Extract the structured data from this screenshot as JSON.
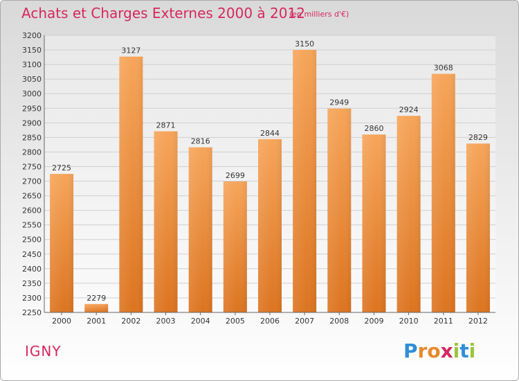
{
  "title": "Achats et Charges Externes 2000 à 2012",
  "subtitle": "(en milliers d'€)",
  "commune": "IGNY",
  "brand": {
    "letters": [
      "P",
      "r",
      "o",
      "x",
      "i",
      "t",
      "i"
    ],
    "colors": [
      "#2f8fd8",
      "#e8892b",
      "#e8892b",
      "#d6275e",
      "#9ac43c",
      "#2f8fd8",
      "#9ac43c"
    ]
  },
  "colors": {
    "accent": "#d6275e",
    "bar_top": "#f6a55a",
    "bar_bottom": "#dc7420",
    "grid": "#cfcfcf"
  },
  "chart_data": {
    "type": "bar",
    "title": "Achats et Charges Externes 2000 à 2012",
    "subtitle": "(en milliers d'€)",
    "categories": [
      "2000",
      "2001",
      "2002",
      "2003",
      "2004",
      "2005",
      "2006",
      "2007",
      "2008",
      "2009",
      "2010",
      "2011",
      "2012"
    ],
    "values": [
      2725,
      2279,
      3127,
      2871,
      2816,
      2699,
      2844,
      3150,
      2949,
      2860,
      2924,
      3068,
      2829
    ],
    "ylim": [
      2250,
      3200
    ],
    "ytick_step": 50,
    "yticks": [
      2250,
      2300,
      2350,
      2400,
      2450,
      2500,
      2550,
      2600,
      2650,
      2700,
      2750,
      2800,
      2850,
      2900,
      2950,
      3000,
      3050,
      3100,
      3150,
      3200
    ],
    "xlabel": "",
    "ylabel": "",
    "grid": true,
    "legend": "none"
  }
}
